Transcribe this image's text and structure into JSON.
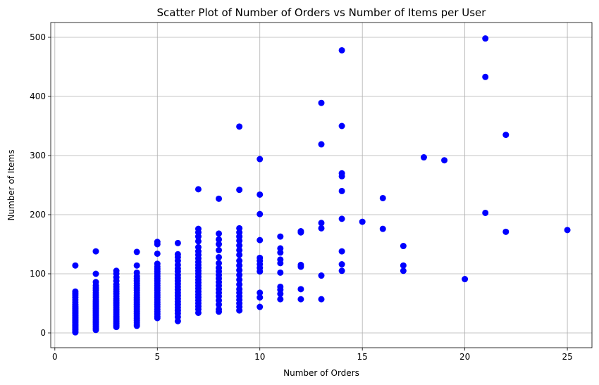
{
  "chart_data": {
    "type": "scatter",
    "title": "Scatter Plot of Number of Orders vs Number of Items per User",
    "xlabel": "Number of Orders",
    "ylabel": "Number of Items",
    "xlim": [
      -0.2,
      26.2
    ],
    "ylim": [
      -25,
      525
    ],
    "xticks": [
      0,
      5,
      10,
      15,
      20,
      25
    ],
    "yticks": [
      0,
      100,
      200,
      300,
      400,
      500
    ],
    "grid": true,
    "marker_color": "#0000ff",
    "columns": [
      {
        "x": 1,
        "y": [
          1,
          3,
          5,
          7,
          9,
          11,
          13,
          15,
          17,
          19,
          21,
          23,
          25,
          27,
          29,
          31,
          33,
          35,
          37,
          39,
          41,
          43,
          45,
          48,
          52,
          56,
          60,
          64,
          67,
          70,
          114
        ]
      },
      {
        "x": 2,
        "y": [
          5,
          8,
          11,
          14,
          17,
          20,
          23,
          26,
          29,
          32,
          35,
          38,
          41,
          44,
          47,
          50,
          53,
          56,
          60,
          64,
          68,
          72,
          76,
          80,
          86,
          100,
          138
        ]
      },
      {
        "x": 3,
        "y": [
          10,
          13,
          16,
          19,
          22,
          25,
          28,
          31,
          34,
          37,
          40,
          43,
          46,
          49,
          52,
          55,
          58,
          62,
          66,
          70,
          74,
          78,
          82,
          88,
          94,
          100,
          105
        ]
      },
      {
        "x": 4,
        "y": [
          12,
          15,
          18,
          21,
          24,
          27,
          30,
          33,
          36,
          39,
          42,
          45,
          48,
          51,
          54,
          57,
          60,
          64,
          68,
          72,
          76,
          80,
          84,
          88,
          92,
          96,
          102,
          114,
          137
        ]
      },
      {
        "x": 5,
        "y": [
          25,
          28,
          32,
          36,
          40,
          44,
          48,
          52,
          56,
          60,
          64,
          68,
          72,
          76,
          80,
          84,
          88,
          92,
          96,
          100,
          104,
          108,
          112,
          117,
          134,
          150,
          154
        ]
      },
      {
        "x": 6,
        "y": [
          20,
          27,
          33,
          38,
          43,
          48,
          53,
          58,
          63,
          68,
          73,
          78,
          83,
          88,
          93,
          98,
          104,
          109,
          115,
          122,
          128,
          133,
          152
        ]
      },
      {
        "x": 7,
        "y": [
          34,
          40,
          45,
          50,
          55,
          60,
          65,
          70,
          75,
          80,
          85,
          90,
          95,
          100,
          105,
          110,
          115,
          120,
          126,
          132,
          138,
          145,
          155,
          163,
          170,
          176,
          243
        ]
      },
      {
        "x": 8,
        "y": [
          36,
          40,
          48,
          55,
          62,
          68,
          74,
          80,
          86,
          92,
          98,
          104,
          110,
          118,
          128,
          140,
          150,
          158,
          168,
          227
        ]
      },
      {
        "x": 9,
        "y": [
          38,
          44,
          50,
          56,
          62,
          68,
          74,
          82,
          90,
          98,
          106,
          114,
          122,
          132,
          140,
          148,
          156,
          163,
          170,
          177,
          242,
          349
        ]
      },
      {
        "x": 10,
        "y": [
          44,
          60,
          68,
          104,
          110,
          116,
          122,
          127,
          157,
          201,
          234,
          294
        ]
      },
      {
        "x": 11,
        "y": [
          57,
          66,
          73,
          78,
          102,
          118,
          124,
          136,
          143,
          163
        ]
      },
      {
        "x": 12,
        "y": [
          57,
          74,
          112,
          115,
          170,
          172
        ]
      },
      {
        "x": 13,
        "y": [
          57,
          97,
          177,
          186,
          319,
          389
        ]
      },
      {
        "x": 14,
        "y": [
          105,
          116,
          138,
          193,
          240,
          265,
          270,
          350,
          478
        ]
      },
      {
        "x": 15,
        "y": [
          188
        ]
      },
      {
        "x": 16,
        "y": [
          176,
          228
        ]
      },
      {
        "x": 17,
        "y": [
          105,
          114,
          147
        ]
      },
      {
        "x": 18,
        "y": [
          297
        ]
      },
      {
        "x": 19,
        "y": [
          292
        ]
      },
      {
        "x": 20,
        "y": [
          91
        ]
      },
      {
        "x": 21,
        "y": [
          203,
          433,
          498
        ]
      },
      {
        "x": 22,
        "y": [
          171,
          335
        ]
      },
      {
        "x": 25,
        "y": [
          174
        ]
      }
    ]
  }
}
